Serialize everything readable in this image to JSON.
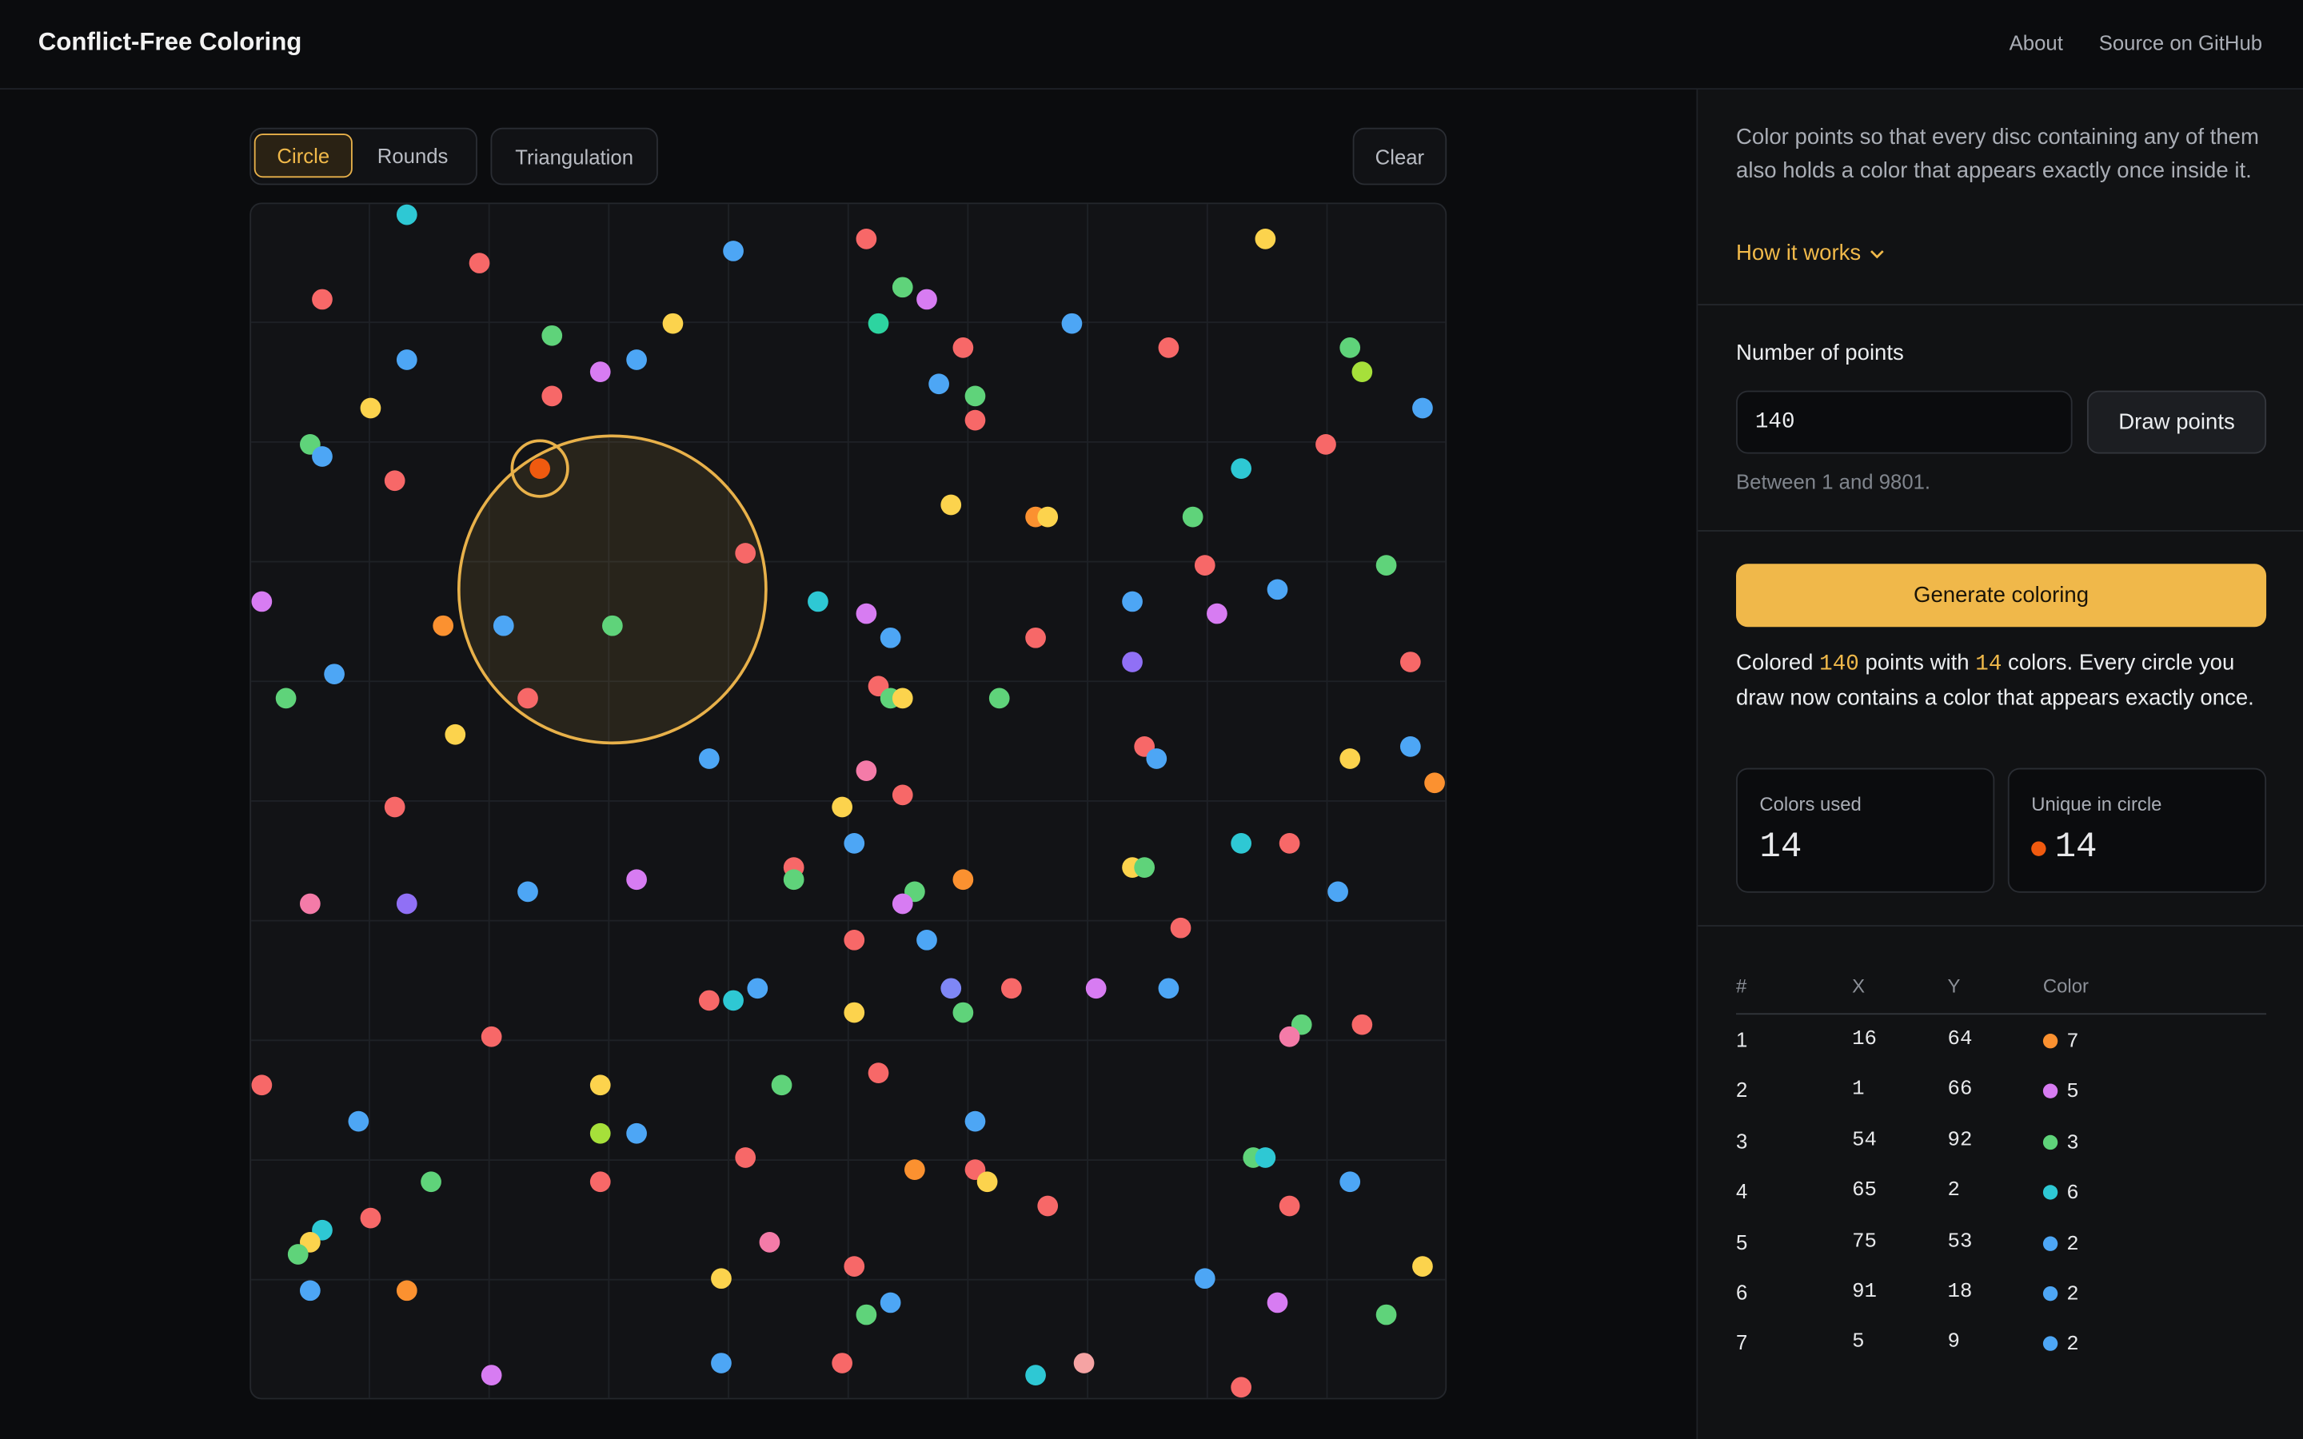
{
  "header": {
    "title": "Conflict-Free Coloring",
    "nav": [
      "About",
      "Source on GitHub"
    ]
  },
  "toolbar": {
    "tabs": [
      "Circle",
      "Rounds"
    ],
    "mode": "Triangulation",
    "clear": "Clear"
  },
  "canvas": {
    "xlim": [
      0,
      99
    ],
    "ylim": [
      0,
      99
    ],
    "circles": [
      {
        "x": 30,
        "y": 67,
        "r": 12.7
      },
      {
        "x": 24,
        "y": 77,
        "r": 2.3
      }
    ],
    "points": [
      [
        13,
        98,
        "#2ec8d4"
      ],
      [
        6,
        91,
        "#f76868"
      ],
      [
        19,
        94,
        "#f76868"
      ],
      [
        40,
        95,
        "#4da6f5"
      ],
      [
        51,
        96,
        "#f76868"
      ],
      [
        84,
        96,
        "#fcd34d"
      ],
      [
        54,
        92,
        "#5fd37a"
      ],
      [
        56,
        91,
        "#d77cf2"
      ],
      [
        52,
        89,
        "#2dd4a0"
      ],
      [
        68,
        89,
        "#4da6f5"
      ],
      [
        59,
        87,
        "#f76868"
      ],
      [
        76,
        87,
        "#f76868"
      ],
      [
        91,
        87,
        "#5fd37a"
      ],
      [
        92,
        85,
        "#a6e03a"
      ],
      [
        13,
        86,
        "#4da6f5"
      ],
      [
        25,
        88,
        "#5fd37a"
      ],
      [
        35,
        89,
        "#fcd34d"
      ],
      [
        29,
        85,
        "#d77cf2"
      ],
      [
        32,
        86,
        "#4da6f5"
      ],
      [
        25,
        83,
        "#f76868"
      ],
      [
        10,
        82,
        "#fcd34d"
      ],
      [
        57,
        84,
        "#4da6f5"
      ],
      [
        60,
        83,
        "#5fd37a"
      ],
      [
        60,
        81,
        "#f76868"
      ],
      [
        97,
        82,
        "#4da6f5"
      ],
      [
        5,
        79,
        "#5fd37a"
      ],
      [
        6,
        78,
        "#4da6f5"
      ],
      [
        12,
        76,
        "#f76868"
      ],
      [
        24,
        77,
        "#f05a0f"
      ],
      [
        89,
        79,
        "#f76868"
      ],
      [
        82,
        77,
        "#2ec8d4"
      ],
      [
        58,
        74,
        "#fcd34d"
      ],
      [
        65,
        73,
        "#fb9130"
      ],
      [
        66,
        73,
        "#fcd34d"
      ],
      [
        78,
        73,
        "#5fd37a"
      ],
      [
        41,
        70,
        "#f76868"
      ],
      [
        79,
        69,
        "#f76868"
      ],
      [
        94,
        69,
        "#5fd37a"
      ],
      [
        85,
        67,
        "#4da6f5"
      ],
      [
        1,
        66,
        "#d77cf2"
      ],
      [
        47,
        66,
        "#2ec8d4"
      ],
      [
        51,
        65,
        "#d77cf2"
      ],
      [
        73,
        66,
        "#4da6f5"
      ],
      [
        80,
        65,
        "#d77cf2"
      ],
      [
        16,
        64,
        "#fb9130"
      ],
      [
        21,
        64,
        "#4da6f5"
      ],
      [
        30,
        64,
        "#5fd37a"
      ],
      [
        53,
        63,
        "#4da6f5"
      ],
      [
        65,
        63,
        "#f76868"
      ],
      [
        7,
        60,
        "#4da6f5"
      ],
      [
        73,
        61,
        "#9070f5"
      ],
      [
        96,
        61,
        "#f76868"
      ],
      [
        3,
        58,
        "#5fd37a"
      ],
      [
        23,
        58,
        "#f76868"
      ],
      [
        52,
        59,
        "#f76868"
      ],
      [
        53,
        58,
        "#5fd37a"
      ],
      [
        54,
        58,
        "#fcd34d"
      ],
      [
        62,
        58,
        "#5fd37a"
      ],
      [
        17,
        55,
        "#fcd34d"
      ],
      [
        38,
        53,
        "#4da6f5"
      ],
      [
        74,
        54,
        "#f76868"
      ],
      [
        75,
        53,
        "#4da6f5"
      ],
      [
        91,
        53,
        "#fcd34d"
      ],
      [
        96,
        54,
        "#4da6f5"
      ],
      [
        98,
        51,
        "#fb9130"
      ],
      [
        51,
        52,
        "#f47ba8"
      ],
      [
        54,
        50,
        "#f76868"
      ],
      [
        49,
        49,
        "#fcd34d"
      ],
      [
        12,
        49,
        "#f76868"
      ],
      [
        50,
        46,
        "#4da6f5"
      ],
      [
        82,
        46,
        "#2ec8d4"
      ],
      [
        86,
        46,
        "#f76868"
      ],
      [
        45,
        44,
        "#f76868"
      ],
      [
        45,
        43,
        "#5fd37a"
      ],
      [
        59,
        43,
        "#fb9130"
      ],
      [
        73,
        44,
        "#fcd34d"
      ],
      [
        74,
        44,
        "#5fd37a"
      ],
      [
        32,
        43,
        "#d77cf2"
      ],
      [
        5,
        41,
        "#f47ba8"
      ],
      [
        13,
        41,
        "#9070f5"
      ],
      [
        23,
        42,
        "#4da6f5"
      ],
      [
        55,
        42,
        "#5fd37a"
      ],
      [
        54,
        41,
        "#d77cf2"
      ],
      [
        90,
        42,
        "#4da6f5"
      ],
      [
        50,
        38,
        "#f76868"
      ],
      [
        56,
        38,
        "#4da6f5"
      ],
      [
        77,
        39,
        "#f76868"
      ],
      [
        58,
        34,
        "#7f87f5"
      ],
      [
        42,
        34,
        "#4da6f5"
      ],
      [
        40,
        33,
        "#2ec8d4"
      ],
      [
        38,
        33,
        "#f76868"
      ],
      [
        63,
        34,
        "#f76868"
      ],
      [
        70,
        34,
        "#d77cf2"
      ],
      [
        76,
        34,
        "#4da6f5"
      ],
      [
        50,
        32,
        "#fcd34d"
      ],
      [
        59,
        32,
        "#5fd37a"
      ],
      [
        87,
        31,
        "#5fd37a"
      ],
      [
        86,
        30,
        "#f47ba8"
      ],
      [
        92,
        31,
        "#f76868"
      ],
      [
        20,
        30,
        "#f76868"
      ],
      [
        1,
        26,
        "#f76868"
      ],
      [
        29,
        26,
        "#fcd34d"
      ],
      [
        44,
        26,
        "#5fd37a"
      ],
      [
        52,
        27,
        "#f76868"
      ],
      [
        9,
        23,
        "#4da6f5"
      ],
      [
        29,
        22,
        "#a6e03a"
      ],
      [
        32,
        22,
        "#4da6f5"
      ],
      [
        60,
        23,
        "#4da6f5"
      ],
      [
        15,
        18,
        "#5fd37a"
      ],
      [
        29,
        18,
        "#f76868"
      ],
      [
        41,
        20,
        "#f76868"
      ],
      [
        55,
        19,
        "#fb9130"
      ],
      [
        60,
        19,
        "#f76868"
      ],
      [
        61,
        18,
        "#fcd34d"
      ],
      [
        83,
        20,
        "#5fd37a"
      ],
      [
        84,
        20,
        "#2ec8d4"
      ],
      [
        91,
        18,
        "#4da6f5"
      ],
      [
        66,
        16,
        "#f76868"
      ],
      [
        86,
        16,
        "#f76868"
      ],
      [
        10,
        15,
        "#f76868"
      ],
      [
        6,
        14,
        "#2ec8d4"
      ],
      [
        5,
        13,
        "#fcd34d"
      ],
      [
        4,
        12,
        "#5fd37a"
      ],
      [
        43,
        13,
        "#f47ba8"
      ],
      [
        50,
        11,
        "#f76868"
      ],
      [
        97,
        11,
        "#fcd34d"
      ],
      [
        39,
        10,
        "#fcd34d"
      ],
      [
        79,
        10,
        "#4da6f5"
      ],
      [
        5,
        9,
        "#4da6f5"
      ],
      [
        13,
        9,
        "#fb9130"
      ],
      [
        53,
        8,
        "#4da6f5"
      ],
      [
        85,
        8,
        "#d77cf2"
      ],
      [
        51,
        7,
        "#5fd37a"
      ],
      [
        94,
        7,
        "#5fd37a"
      ],
      [
        39,
        3,
        "#4da6f5"
      ],
      [
        49,
        3,
        "#f76868"
      ],
      [
        69,
        3,
        "#f5a3a3"
      ],
      [
        65,
        2,
        "#2ec8d4"
      ],
      [
        20,
        2,
        "#d77cf2"
      ],
      [
        82,
        1,
        "#f76868"
      ]
    ]
  },
  "sidebar": {
    "description": "Color points so that every disc containing any of them also holds a color that appears exactly once inside it.",
    "how": "How it works",
    "count_label": "Number of points",
    "count_value": "140",
    "draw": "Draw points",
    "hint": "Between 1 and 9801.",
    "generate": "Generate coloring",
    "result": [
      "Colored ",
      "140",
      " points with ",
      "14",
      " colors. Every circle you draw now contains a color that appears exactly once."
    ],
    "stats": [
      {
        "label": "Colors used",
        "value": 14
      },
      {
        "label": "Unique in circle",
        "value": 14,
        "color": "#f05a0f"
      }
    ],
    "table": {
      "headers": [
        "#",
        "X",
        "Y",
        "Color"
      ],
      "rows": [
        [
          1,
          16,
          64,
          7,
          "#fb9130"
        ],
        [
          2,
          1,
          66,
          5,
          "#d77cf2"
        ],
        [
          3,
          54,
          92,
          3,
          "#5fd37a"
        ],
        [
          4,
          65,
          2,
          6,
          "#2ec8d4"
        ],
        [
          5,
          75,
          53,
          2,
          "#4da6f5"
        ],
        [
          6,
          91,
          18,
          2,
          "#4da6f5"
        ],
        [
          7,
          5,
          9,
          2,
          "#4da6f5"
        ]
      ]
    }
  }
}
